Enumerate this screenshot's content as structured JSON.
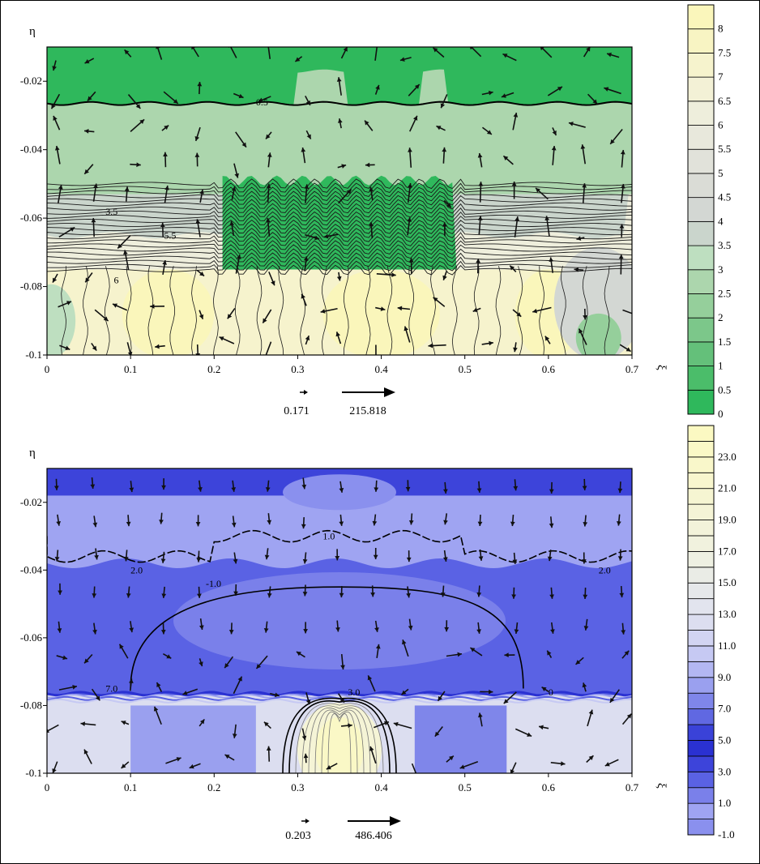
{
  "chart_data": [
    {
      "type": "heatmap",
      "title": "",
      "xlabel": "ξ",
      "ylabel": "η",
      "xlim": [
        0,
        0.7
      ],
      "ylim": [
        -0.1,
        -0.01
      ],
      "x_ticks": [
        "0",
        "0.1",
        "0.2",
        "0.3",
        "0.4",
        "0.5",
        "0.6",
        "0.7"
      ],
      "y_ticks": [
        "-0.02",
        "-0.04",
        "-0.06",
        "-0.08",
        "-0.1"
      ],
      "x_tick_values": [
        0,
        0.1,
        0.2,
        0.3,
        0.4,
        0.5,
        0.6,
        0.7
      ],
      "y_tick_values": [
        -0.02,
        -0.04,
        -0.06,
        -0.08,
        -0.1
      ],
      "colorbar": {
        "levels": [
          0,
          0.5,
          1,
          1.5,
          2,
          2.5,
          3,
          3.5,
          4,
          4.5,
          5,
          5.5,
          6,
          6.5,
          7,
          7.5,
          8
        ],
        "labels": [
          "0",
          "0.5",
          "1",
          "1.5",
          "2",
          "2.5",
          "3",
          "3.5",
          "4",
          "4.5",
          "5",
          "5.5",
          "6",
          "6.5",
          "7",
          "7.5",
          "8"
        ],
        "colors": [
          "#2fb85c",
          "#4bbd6a",
          "#64c07a",
          "#7cc78a",
          "#95cf9b",
          "#acd6ad",
          "#bedfc0",
          "#cad5cc",
          "#d3d7d3",
          "#dadcd6",
          "#e1e2da",
          "#e8e8dc",
          "#eeeedc",
          "#f3f1d6",
          "#f6f3cd",
          "#f8f4c3",
          "#faf6bb"
        ]
      },
      "contour_labels": [
        "0.5",
        "3.5",
        "5.5",
        "6"
      ],
      "vector_reference": {
        "min_label": "0.171",
        "max_label": "215.818"
      }
    },
    {
      "type": "heatmap",
      "title": "",
      "xlabel": "ξ",
      "ylabel": "η",
      "xlim": [
        0,
        0.7
      ],
      "ylim": [
        -0.1,
        -0.01
      ],
      "x_ticks": [
        "0",
        "0.1",
        "0.2",
        "0.3",
        "0.4",
        "0.5",
        "0.6",
        "0.7"
      ],
      "y_ticks": [
        "-0.02",
        "-0.04",
        "-0.06",
        "-0.08",
        "-0.1"
      ],
      "x_tick_values": [
        0,
        0.1,
        0.2,
        0.3,
        0.4,
        0.5,
        0.6,
        0.7
      ],
      "y_tick_values": [
        -0.02,
        -0.04,
        -0.06,
        -0.08,
        -0.1
      ],
      "colorbar": {
        "levels": [
          -1.0,
          0,
          1.0,
          2.0,
          3.0,
          4.0,
          5.0,
          6.0,
          7.0,
          8.0,
          9.0,
          10.0,
          11.0,
          12.0,
          13.0,
          14.0,
          15.0,
          16.0,
          17.0,
          18.0,
          19.0,
          20.0,
          21.0,
          22.0,
          23.0,
          24.0
        ],
        "labels": [
          "-1.0",
          "",
          "1.0",
          "",
          "3.0",
          "",
          "5.0",
          "",
          "7.0",
          "",
          "9.0",
          "",
          "11.0",
          "",
          "13.0",
          "",
          "15.0",
          "",
          "17.0",
          "",
          "19.0",
          "",
          "21.0",
          "",
          "23.0",
          ""
        ],
        "colors": [
          "#8a90ee",
          "#9fa4f2",
          "#7a80ea",
          "#5a62e4",
          "#3d44da",
          "#2a31d2",
          "#3a42d8",
          "#6068e2",
          "#7f86ea",
          "#9aa0ef",
          "#b3b7f2",
          "#c6c9f3",
          "#d2d4f2",
          "#dcdef0",
          "#e2e4ee",
          "#e6e8ea",
          "#eaece6",
          "#eef0e2",
          "#f1f2de",
          "#f3f3da",
          "#f5f4d6",
          "#f6f5d2",
          "#f8f6ce",
          "#f9f7ca",
          "#faf8c6",
          "#fbf9c2"
        ]
      },
      "contour_labels": [
        "1.0",
        "2.0",
        "2.0",
        "-1.0",
        "7.0",
        "3.0",
        "0"
      ],
      "vector_reference": {
        "min_label": "0.203",
        "max_label": "486.406"
      }
    }
  ]
}
